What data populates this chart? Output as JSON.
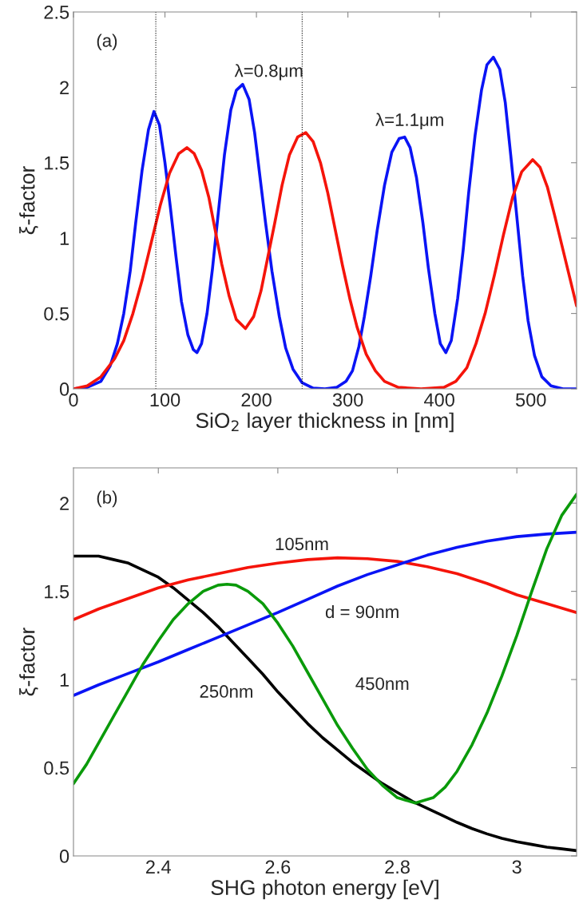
{
  "chart_data": [
    {
      "type": "line",
      "xlabel": "SiO$_{2}$ layer thickness in [nm]",
      "ylabel": "ξ-factor",
      "xlim": [
        0,
        550
      ],
      "ylim": [
        0,
        2.5
      ],
      "xticks": [
        0,
        100,
        200,
        300,
        400,
        500
      ],
      "yticks": [
        0,
        0.5,
        1,
        1.5,
        2,
        2.5
      ],
      "grid": false,
      "legend": false,
      "series": [
        {
          "color": "#0a14f5",
          "x": [
            0,
            15,
            30,
            40,
            48,
            55,
            62,
            68,
            75,
            82,
            88,
            94,
            100,
            106,
            112,
            118,
            125,
            131,
            135,
            140,
            146,
            152,
            158,
            165,
            172,
            178,
            185,
            192,
            198,
            204,
            210,
            217,
            225,
            232,
            240,
            250,
            262,
            275,
            288,
            298,
            305,
            312,
            318,
            325,
            332,
            340,
            348,
            356,
            362,
            368,
            375,
            382,
            388,
            395,
            401,
            407,
            413,
            420,
            426,
            432,
            439,
            446,
            452,
            459,
            466,
            472,
            478,
            485,
            491,
            497,
            504,
            512,
            522,
            535,
            550
          ],
          "values": [
            0,
            0.01,
            0.05,
            0.15,
            0.3,
            0.5,
            0.78,
            1.1,
            1.45,
            1.72,
            1.84,
            1.75,
            1.5,
            1.2,
            0.88,
            0.58,
            0.36,
            0.26,
            0.24,
            0.3,
            0.5,
            0.8,
            1.15,
            1.55,
            1.85,
            1.98,
            2.02,
            1.92,
            1.7,
            1.4,
            1.1,
            0.78,
            0.48,
            0.27,
            0.13,
            0.04,
            0.005,
            0,
            0.01,
            0.05,
            0.12,
            0.28,
            0.48,
            0.75,
            1.05,
            1.35,
            1.57,
            1.66,
            1.67,
            1.6,
            1.4,
            1.1,
            0.8,
            0.5,
            0.3,
            0.24,
            0.32,
            0.6,
            0.92,
            1.3,
            1.68,
            1.98,
            2.15,
            2.2,
            2.12,
            1.9,
            1.55,
            1.12,
            0.75,
            0.45,
            0.22,
            0.08,
            0.02,
            0,
            0
          ]
        },
        {
          "color": "#f5140a",
          "x": [
            0,
            15,
            30,
            45,
            55,
            65,
            75,
            85,
            95,
            105,
            115,
            124,
            132,
            140,
            148,
            155,
            162,
            170,
            178,
            188,
            197,
            205,
            212,
            220,
            228,
            236,
            245,
            254,
            262,
            270,
            278,
            286,
            294,
            302,
            310,
            320,
            330,
            340,
            355,
            380,
            405,
            418,
            430,
            440,
            450,
            460,
            470,
            480,
            490,
            502,
            510,
            518,
            526,
            534,
            542,
            550
          ],
          "values": [
            0,
            0.02,
            0.08,
            0.2,
            0.32,
            0.5,
            0.72,
            0.97,
            1.22,
            1.43,
            1.56,
            1.6,
            1.56,
            1.45,
            1.27,
            1.05,
            0.83,
            0.62,
            0.46,
            0.4,
            0.48,
            0.65,
            0.86,
            1.1,
            1.35,
            1.55,
            1.67,
            1.7,
            1.64,
            1.5,
            1.3,
            1.06,
            0.82,
            0.6,
            0.41,
            0.23,
            0.12,
            0.05,
            0.01,
            0,
            0.01,
            0.05,
            0.14,
            0.3,
            0.5,
            0.75,
            1.02,
            1.27,
            1.44,
            1.52,
            1.47,
            1.34,
            1.15,
            0.95,
            0.75,
            0.55
          ]
        }
      ],
      "ref_lines": [
        {
          "axis": "x",
          "value": 90,
          "color": "#000000",
          "line_style": "dotted"
        },
        {
          "axis": "x",
          "value": 250,
          "color": "#000000",
          "line_style": "dotted"
        }
      ],
      "annotations": [
        "(a)",
        "λ=0.8μm",
        "λ=1.1μm"
      ]
    },
    {
      "type": "line",
      "xlabel": "SHG photon energy [eV]",
      "ylabel": "ξ-factor",
      "xlim": [
        2.258,
        3.1
      ],
      "ylim": [
        0,
        2.2
      ],
      "xticks": [
        2.4,
        2.6,
        2.8,
        3
      ],
      "yticks": [
        0,
        0.5,
        1,
        1.5,
        2
      ],
      "grid": false,
      "legend": false,
      "series": [
        {
          "color": "#000000",
          "x": [
            2.258,
            2.28,
            2.3,
            2.325,
            2.35,
            2.375,
            2.4,
            2.425,
            2.45,
            2.475,
            2.5,
            2.525,
            2.55,
            2.575,
            2.6,
            2.625,
            2.65,
            2.675,
            2.7,
            2.725,
            2.75,
            2.775,
            2.8,
            2.825,
            2.85,
            2.875,
            2.9,
            2.925,
            2.95,
            2.975,
            3.0,
            3.025,
            3.05,
            3.075,
            3.1
          ],
          "values": [
            1.7,
            1.7,
            1.7,
            1.68,
            1.66,
            1.62,
            1.58,
            1.52,
            1.45,
            1.38,
            1.3,
            1.21,
            1.12,
            1.03,
            0.93,
            0.84,
            0.75,
            0.67,
            0.6,
            0.53,
            0.47,
            0.41,
            0.36,
            0.31,
            0.27,
            0.23,
            0.19,
            0.155,
            0.125,
            0.1,
            0.08,
            0.065,
            0.05,
            0.04,
            0.03
          ]
        },
        {
          "color": "#f5140a",
          "x": [
            2.258,
            2.3,
            2.35,
            2.4,
            2.45,
            2.5,
            2.55,
            2.6,
            2.65,
            2.7,
            2.75,
            2.8,
            2.85,
            2.9,
            2.95,
            3.0,
            3.05,
            3.1
          ],
          "values": [
            1.34,
            1.4,
            1.46,
            1.52,
            1.565,
            1.6,
            1.635,
            1.66,
            1.68,
            1.69,
            1.685,
            1.67,
            1.64,
            1.6,
            1.545,
            1.48,
            1.43,
            1.38
          ]
        },
        {
          "color": "#0a14f5",
          "x": [
            2.258,
            2.3,
            2.35,
            2.4,
            2.45,
            2.5,
            2.55,
            2.6,
            2.65,
            2.7,
            2.75,
            2.8,
            2.85,
            2.9,
            2.95,
            3.0,
            3.05,
            3.1
          ],
          "values": [
            0.91,
            0.97,
            1.035,
            1.1,
            1.17,
            1.24,
            1.31,
            1.38,
            1.455,
            1.53,
            1.595,
            1.65,
            1.705,
            1.75,
            1.785,
            1.81,
            1.825,
            1.835
          ]
        },
        {
          "color": "#0a9a0a",
          "x": [
            2.258,
            2.28,
            2.3,
            2.325,
            2.35,
            2.375,
            2.4,
            2.425,
            2.45,
            2.475,
            2.5,
            2.515,
            2.53,
            2.55,
            2.575,
            2.6,
            2.625,
            2.65,
            2.675,
            2.7,
            2.725,
            2.75,
            2.775,
            2.8,
            2.83,
            2.86,
            2.88,
            2.9,
            2.925,
            2.95,
            2.975,
            3.0,
            3.025,
            3.05,
            3.075,
            3.1
          ],
          "values": [
            0.41,
            0.52,
            0.64,
            0.79,
            0.94,
            1.09,
            1.22,
            1.34,
            1.43,
            1.5,
            1.535,
            1.54,
            1.535,
            1.5,
            1.43,
            1.32,
            1.19,
            1.04,
            0.89,
            0.74,
            0.61,
            0.49,
            0.4,
            0.33,
            0.3,
            0.33,
            0.39,
            0.48,
            0.63,
            0.81,
            1.02,
            1.25,
            1.5,
            1.74,
            1.93,
            2.05
          ]
        }
      ],
      "annotations": [
        "(b)",
        "105nm",
        "d = 90nm",
        "250nm",
        "450nm"
      ]
    }
  ]
}
